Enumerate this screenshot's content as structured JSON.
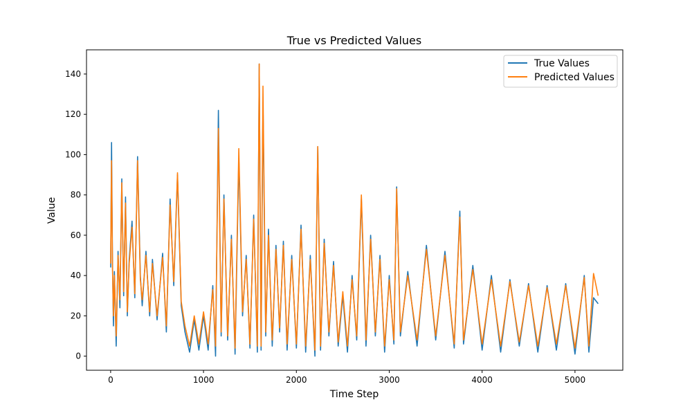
{
  "chart_data": {
    "type": "line",
    "title": "True vs Predicted Values",
    "xlabel": "Time Step",
    "ylabel": "Value",
    "xlim": [
      -260,
      5515
    ],
    "ylim": [
      -7,
      152
    ],
    "xticks": [
      0,
      1000,
      2000,
      3000,
      4000,
      5000
    ],
    "yticks": [
      0,
      20,
      40,
      60,
      80,
      100,
      120,
      140
    ],
    "legend_position": "top-right",
    "series": [
      {
        "name": "True Values",
        "color": "#1f77b4",
        "x": [
          0,
          10,
          20,
          30,
          40,
          60,
          80,
          100,
          120,
          140,
          160,
          180,
          200,
          230,
          260,
          290,
          320,
          340,
          380,
          420,
          450,
          500,
          560,
          600,
          640,
          680,
          720,
          760,
          800,
          850,
          900,
          950,
          1000,
          1050,
          1100,
          1130,
          1160,
          1190,
          1220,
          1260,
          1300,
          1340,
          1380,
          1420,
          1460,
          1500,
          1540,
          1580,
          1600,
          1620,
          1640,
          1670,
          1700,
          1740,
          1780,
          1820,
          1860,
          1900,
          1950,
          2000,
          2050,
          2100,
          2150,
          2200,
          2230,
          2260,
          2300,
          2350,
          2400,
          2450,
          2500,
          2550,
          2600,
          2650,
          2700,
          2750,
          2800,
          2850,
          2900,
          2950,
          3000,
          3050,
          3080,
          3120,
          3200,
          3300,
          3400,
          3500,
          3600,
          3700,
          3760,
          3800,
          3900,
          4000,
          4100,
          4200,
          4300,
          4400,
          4500,
          4600,
          4700,
          4800,
          4900,
          5000,
          5100,
          5150,
          5200,
          5250
        ],
        "values": [
          44,
          106,
          45,
          15,
          42,
          5,
          52,
          24,
          88,
          30,
          79,
          20,
          48,
          67,
          29,
          99,
          40,
          25,
          52,
          20,
          48,
          18,
          51,
          12,
          78,
          35,
          90,
          25,
          12,
          2,
          18,
          3,
          20,
          3,
          35,
          0,
          122,
          10,
          80,
          8,
          60,
          1,
          98,
          20,
          50,
          4,
          70,
          2,
          145,
          3,
          126,
          10,
          63,
          5,
          55,
          12,
          57,
          3,
          50,
          4,
          65,
          2,
          50,
          0,
          104,
          3,
          58,
          10,
          47,
          5,
          30,
          2,
          40,
          8,
          78,
          5,
          60,
          10,
          50,
          2,
          40,
          6,
          84,
          10,
          42,
          5,
          55,
          8,
          52,
          4,
          72,
          6,
          45,
          3,
          40,
          2,
          38,
          5,
          36,
          2,
          35,
          3,
          36,
          1,
          40,
          2,
          29,
          26
        ]
      },
      {
        "name": "Predicted Values",
        "color": "#ff7f0e",
        "x": [
          0,
          10,
          20,
          30,
          40,
          60,
          80,
          100,
          120,
          140,
          160,
          180,
          200,
          230,
          260,
          290,
          320,
          340,
          380,
          420,
          450,
          500,
          560,
          600,
          640,
          680,
          720,
          760,
          800,
          850,
          900,
          950,
          1000,
          1050,
          1100,
          1130,
          1160,
          1190,
          1220,
          1260,
          1300,
          1340,
          1380,
          1420,
          1460,
          1500,
          1540,
          1580,
          1600,
          1620,
          1640,
          1670,
          1700,
          1740,
          1780,
          1820,
          1860,
          1900,
          1950,
          2000,
          2050,
          2100,
          2150,
          2200,
          2230,
          2260,
          2300,
          2350,
          2400,
          2450,
          2500,
          2550,
          2600,
          2650,
          2700,
          2750,
          2800,
          2850,
          2900,
          2950,
          3000,
          3050,
          3080,
          3120,
          3200,
          3300,
          3400,
          3500,
          3600,
          3700,
          3760,
          3800,
          3900,
          4000,
          4100,
          4200,
          4300,
          4400,
          4500,
          4600,
          4700,
          4800,
          4900,
          5000,
          5100,
          5150,
          5200,
          5250
        ],
        "values": [
          46,
          97,
          43,
          20,
          40,
          10,
          50,
          28,
          86,
          32,
          76,
          22,
          46,
          64,
          31,
          97,
          38,
          28,
          50,
          22,
          46,
          20,
          49,
          15,
          75,
          37,
          91,
          27,
          15,
          5,
          20,
          6,
          22,
          6,
          33,
          5,
          113,
          12,
          78,
          10,
          58,
          4,
          103,
          22,
          48,
          6,
          68,
          5,
          145,
          5,
          134,
          12,
          60,
          8,
          53,
          14,
          55,
          6,
          48,
          6,
          63,
          5,
          48,
          3,
          104,
          5,
          56,
          12,
          45,
          7,
          32,
          5,
          38,
          10,
          80,
          8,
          58,
          12,
          48,
          5,
          38,
          8,
          83,
          12,
          40,
          8,
          53,
          10,
          50,
          6,
          69,
          8,
          43,
          6,
          38,
          5,
          37,
          7,
          35,
          5,
          34,
          6,
          35,
          4,
          39,
          5,
          41,
          30
        ]
      }
    ]
  }
}
